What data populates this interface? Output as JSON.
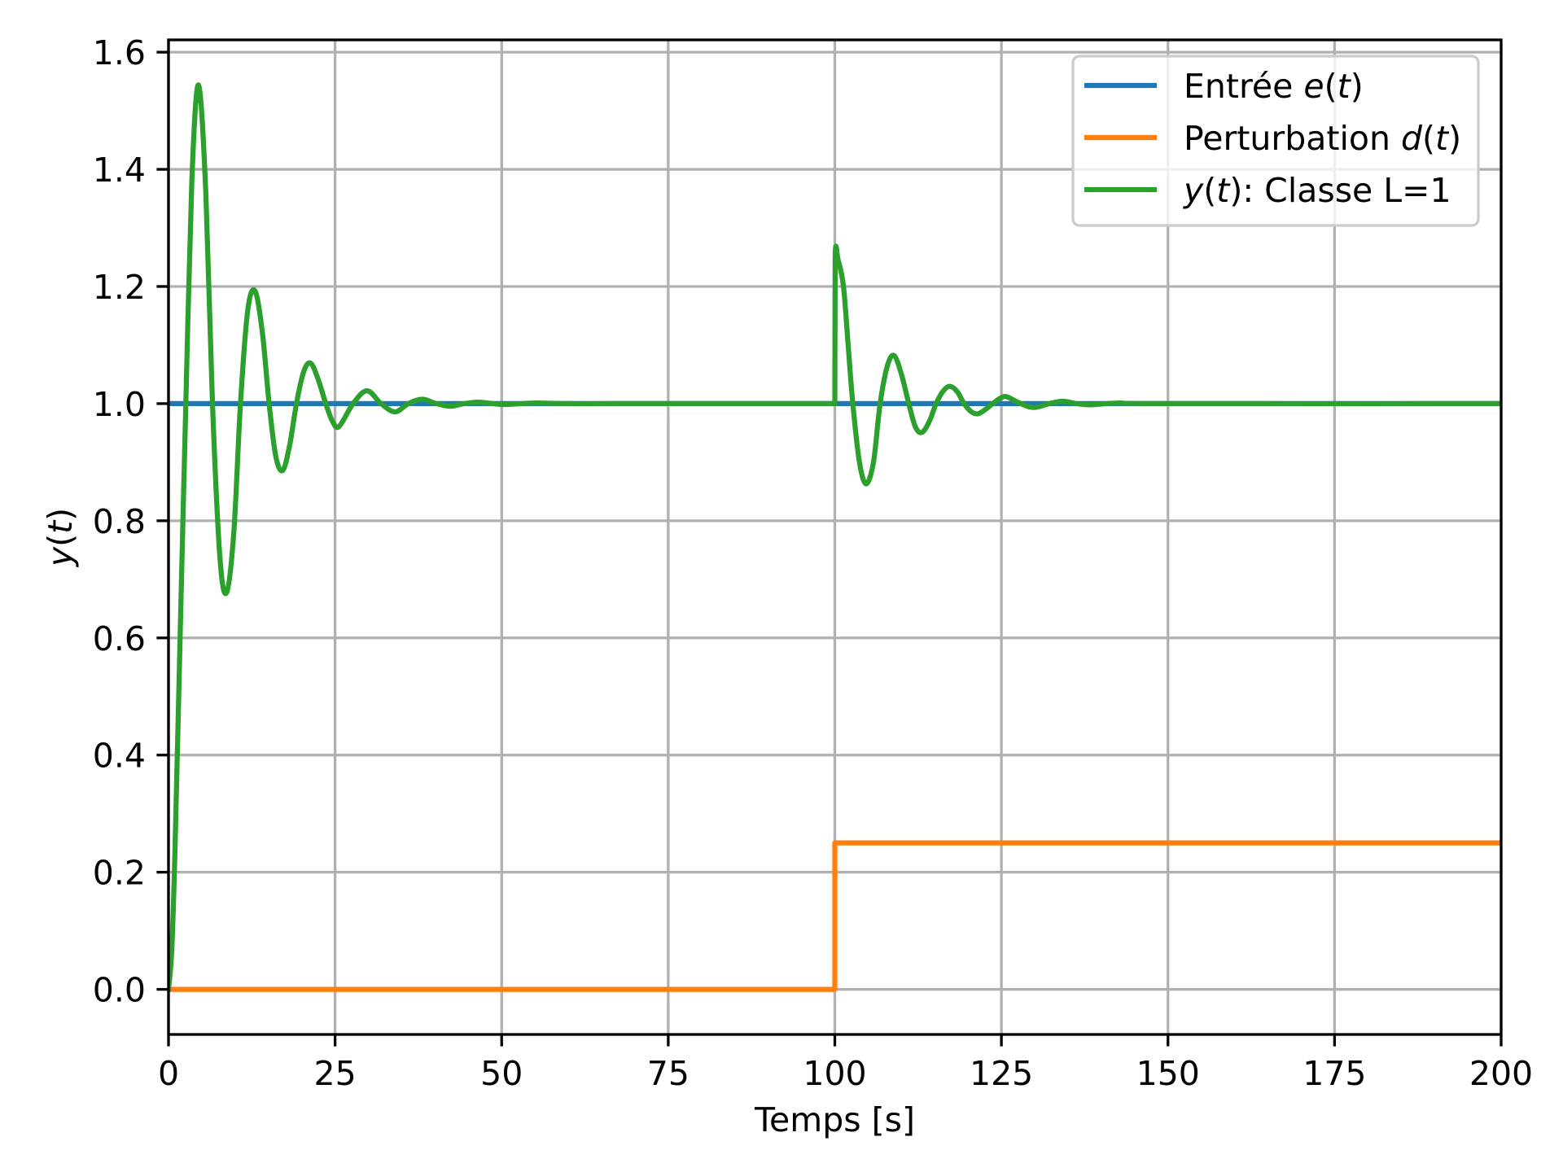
{
  "chart_data": {
    "type": "line",
    "title": "",
    "xlabel": "Temps [s]",
    "ylabel_parts": [
      {
        "text": "y",
        "italic": true
      },
      {
        "text": "("
      },
      {
        "text": "t",
        "italic": true
      },
      {
        "text": ")"
      }
    ],
    "xlim": [
      0,
      200
    ],
    "ylim": [
      -0.077,
      1.621
    ],
    "xticks": [
      0,
      25,
      50,
      75,
      100,
      125,
      150,
      175,
      200
    ],
    "xtick_labels": [
      "0",
      "25",
      "50",
      "75",
      "100",
      "125",
      "150",
      "175",
      "200"
    ],
    "yticks": [
      0.0,
      0.2,
      0.4,
      0.6,
      0.8,
      1.0,
      1.2,
      1.4,
      1.6
    ],
    "ytick_labels": [
      "0.0",
      "0.2",
      "0.4",
      "0.6",
      "0.8",
      "1.0",
      "1.2",
      "1.4",
      "1.6"
    ],
    "grid": true,
    "legend_position": "top-right",
    "series": [
      {
        "name_parts": [
          {
            "text": "Entrée "
          },
          {
            "text": "e",
            "italic": true
          },
          {
            "text": "("
          },
          {
            "text": "t",
            "italic": true
          },
          {
            "text": ")"
          }
        ],
        "color": "#1f77b4",
        "step": true,
        "x": [
          0,
          200
        ],
        "y": [
          1.0,
          1.0
        ]
      },
      {
        "name_parts": [
          {
            "text": "Perturbation "
          },
          {
            "text": "d",
            "italic": true
          },
          {
            "text": "("
          },
          {
            "text": "t",
            "italic": true
          },
          {
            "text": ")"
          }
        ],
        "color": "#ff7f0e",
        "step": true,
        "x": [
          0,
          100,
          100,
          200
        ],
        "y": [
          0.0,
          0.0,
          0.25,
          0.25
        ]
      },
      {
        "name_parts": [
          {
            "text": "y",
            "italic": true
          },
          {
            "text": "("
          },
          {
            "text": "t",
            "italic": true
          },
          {
            "text": "): Classe L=1"
          }
        ],
        "color": "#2ca02c",
        "step": false,
        "segments": [
          {
            "x": [
              0,
              0.5,
              1.0,
              1.8,
              2.6,
              3.5,
              4.5,
              5.6,
              6.6,
              7.7,
              8.7,
              9.8,
              10.8,
              11.9,
              13.0,
              14.1,
              15.1,
              16.1,
              17.15,
              18.2,
              19.2,
              20.3,
              21.35,
              22.5,
              23.6,
              24.6,
              25.6,
              27.7,
              29.8,
              31.9,
              34.0,
              36.0,
              38.1,
              40.2,
              42.3,
              44.4,
              46.5,
              48.6,
              50.7,
              54.9,
              60,
              70,
              100
            ],
            "y": [
              0.0,
              0.07,
              0.25,
              0.63,
              1.0,
              1.38,
              1.544,
              1.36,
              1.0,
              0.74,
              0.677,
              0.78,
              1.0,
              1.16,
              1.192,
              1.12,
              1.0,
              0.91,
              0.886,
              0.93,
              1.0,
              1.055,
              1.069,
              1.04,
              1.0,
              0.97,
              0.961,
              1.0,
              1.022,
              1.0,
              0.986,
              1.0,
              1.0075,
              1.0,
              0.9955,
              1.0,
              1.0025,
              1.0,
              0.9985,
              1.001,
              1.0,
              1.0,
              1.0
            ]
          },
          {
            "x": [
              100,
              100.05,
              100.5,
              101.3,
              102.0,
              102.7,
              103.7,
              104.7,
              105.8,
              106.8,
              107.9,
              108.9,
              110.0,
              111.1,
              112.1,
              113.1,
              114.2,
              115.2,
              116.3,
              117.3,
              118.4,
              119.4,
              120.5,
              121.5,
              122.6,
              123.7,
              124.8,
              125.8,
              127.9,
              129.9,
              132.2,
              134.2,
              136.3,
              138.4,
              142.5,
              150,
              200
            ],
            "y": [
              1.0,
              1.25,
              1.245,
              1.2,
              1.1,
              1.0,
              0.9,
              0.863,
              0.9,
              1.0,
              1.065,
              1.082,
              1.05,
              1.0,
              0.96,
              0.951,
              0.97,
              1.0,
              1.022,
              1.0295,
              1.02,
              1.0,
              0.986,
              0.9827,
              0.99,
              1.0,
              1.009,
              1.0117,
              1.0,
              0.9934,
              1.0,
              1.004,
              1.0,
              0.998,
              1.001,
              1.0,
              1.0
            ]
          }
        ]
      }
    ]
  }
}
